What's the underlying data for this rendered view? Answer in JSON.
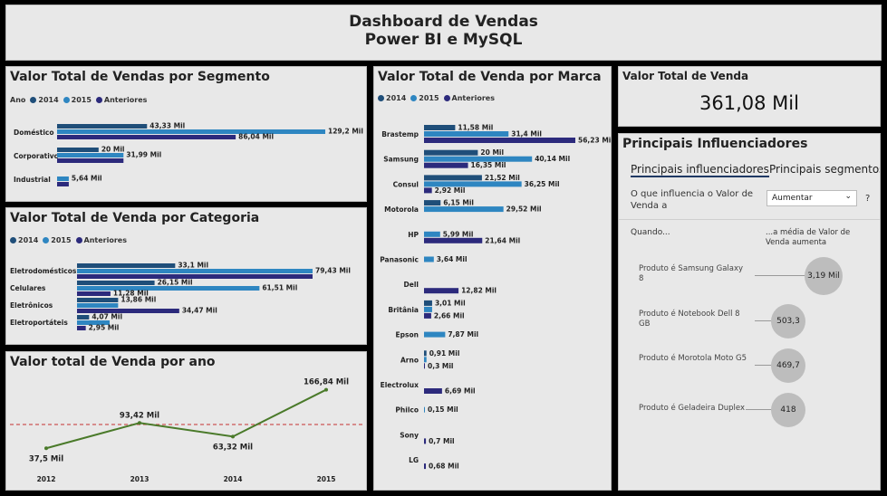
{
  "header": {
    "title_line1": "Dashboard de Vendas",
    "title_line2": "Power BI e MySQL"
  },
  "colors": {
    "s2014": "#1f4e79",
    "s2015": "#2e86c1",
    "anteriores": "#2c2a7c",
    "line": "#4a7a2a",
    "ref": "#cc5555"
  },
  "segment": {
    "title": "Valor Total de Vendas por Segmento",
    "legend": {
      "label": "Ano",
      "s1": "2014",
      "s2": "2015",
      "s3": "Anteriores"
    },
    "chart_data": {
      "type": "bar",
      "categories": [
        "Doméstico",
        "Corporativo",
        "Industrial"
      ],
      "series": [
        {
          "name": "2014",
          "values": [
            43.33,
            20,
            null
          ],
          "labels": [
            "43,33 Mil",
            "20 Mil",
            ""
          ]
        },
        {
          "name": "2015",
          "values": [
            129.2,
            31.99,
            5.64
          ],
          "labels": [
            "129,2 Mil",
            "31,99 Mil",
            "5,64 Mil"
          ]
        },
        {
          "name": "Anteriores",
          "values": [
            86.04,
            31.99,
            5.64
          ],
          "labels": [
            "86,04 Mil",
            "",
            ""
          ]
        }
      ]
    }
  },
  "category": {
    "title": "Valor Total de Venda por Categoria",
    "legend": {
      "s1": "2014",
      "s2": "2015",
      "s3": "Anteriores"
    },
    "chart_data": {
      "type": "bar",
      "categories": [
        "Eletrodomésticos",
        "Celulares",
        "Eletrônicos",
        "Eletroportáteis"
      ],
      "series": [
        {
          "name": "2014",
          "values": [
            33.1,
            26.15,
            13.86,
            4.07
          ],
          "labels": [
            "33,1 Mil",
            "26,15 Mil",
            "13,86 Mil",
            "4,07 Mil"
          ]
        },
        {
          "name": "2015",
          "values": [
            79.43,
            61.51,
            13.86,
            11.0
          ],
          "labels": [
            "79,43 Mil",
            "61,51 Mil",
            "",
            ""
          ]
        },
        {
          "name": "Anteriores",
          "values": [
            79.43,
            11.28,
            34.47,
            2.95
          ],
          "labels": [
            "",
            "11,28 Mil",
            "34,47 Mil",
            "2,95 Mil"
          ]
        }
      ]
    }
  },
  "byyear": {
    "title": "Valor total de Venda por ano",
    "chart_data": {
      "type": "line",
      "x": [
        "2012",
        "2013",
        "2014",
        "2015"
      ],
      "values": [
        37.5,
        93.42,
        63.32,
        166.84
      ],
      "labels": [
        "37,5 Mil",
        "93,42 Mil",
        "63,32 Mil",
        "166,84 Mil"
      ],
      "reference": 90
    }
  },
  "brand": {
    "title": "Valor Total de Venda por Marca",
    "legend": {
      "s1": "2014",
      "s2": "2015",
      "s3": "Anteriores"
    },
    "chart_data": {
      "type": "bar",
      "categories": [
        "Brastemp",
        "Samsung",
        "Consul",
        "Motorola",
        "HP",
        "Panasonic",
        "Dell",
        "Britânia",
        "Epson",
        "Arno",
        "Electrolux",
        "Philco",
        "Sony",
        "LG"
      ],
      "series": [
        {
          "name": "2014",
          "values": [
            11.58,
            20,
            21.52,
            6.15,
            null,
            null,
            null,
            3.01,
            null,
            0.91,
            null,
            null,
            null,
            null
          ],
          "labels": [
            "11,58 Mil",
            "20 Mil",
            "21,52 Mil",
            "6,15 Mil",
            "",
            "",
            "",
            "3,01 Mil",
            "",
            "0,91 Mil",
            "",
            "",
            "",
            ""
          ]
        },
        {
          "name": "2015",
          "values": [
            31.4,
            40.14,
            36.25,
            29.52,
            5.99,
            3.64,
            null,
            3.01,
            7.87,
            0.91,
            null,
            0.15,
            null,
            null
          ],
          "labels": [
            "31,4 Mil",
            "40,14 Mil",
            "36,25 Mil",
            "29,52 Mil",
            "5,99 Mil",
            "3,64 Mil",
            "",
            "",
            "7,87 Mil",
            "",
            "",
            "0,15 Mil",
            "",
            ""
          ]
        },
        {
          "name": "Anteriores",
          "values": [
            56.23,
            16.35,
            2.92,
            null,
            21.64,
            null,
            12.82,
            2.66,
            null,
            0.3,
            6.69,
            null,
            0.7,
            0.68
          ],
          "labels": [
            "56,23 Mil",
            "16,35 Mil",
            "2,92 Mil",
            "",
            "21,64 Mil",
            "",
            "12,82 Mil",
            "2,66 Mil",
            "",
            "0,3 Mil",
            "6,69 Mil",
            "",
            "0,7 Mil",
            "0,68 Mil"
          ]
        }
      ]
    }
  },
  "kpi": {
    "label": "Valor Total de Venda",
    "value": "361,08 Mil"
  },
  "influencers": {
    "title": "Principais Influenciadores",
    "tab1": "Principais influenciadores",
    "tab2": "Principais segmentos",
    "question": "O que influencia o Valor de Venda a",
    "dropdown": "Aumentar",
    "help": "?",
    "when": "Quando...",
    "avg": "...a média de Valor de Venda aumenta",
    "items": [
      {
        "label": "Produto é Samsung Galaxy 8",
        "value": "3,19 Mil"
      },
      {
        "label": "Produto é Notebook Dell 8 GB",
        "value": "503,3"
      },
      {
        "label": "Produto é Morotola Moto G5",
        "value": "469,7"
      },
      {
        "label": "Produto é Geladeira Duplex",
        "value": "418"
      }
    ]
  }
}
